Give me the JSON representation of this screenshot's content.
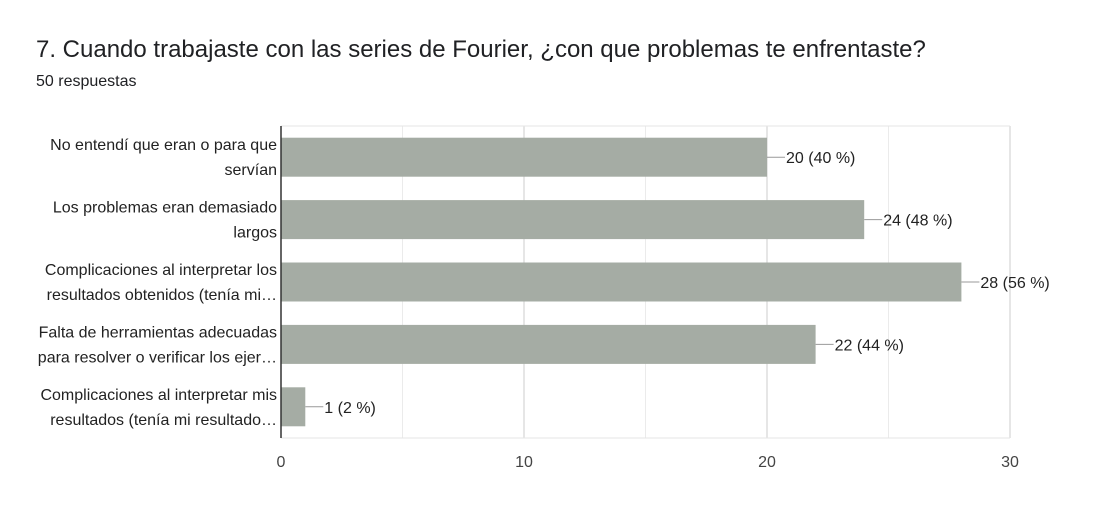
{
  "title": "7. Cuando trabajaste con las series de Fourier, ¿con que problemas te enfrentaste?",
  "subtitle": "50 respuestas",
  "chart_data": {
    "type": "bar",
    "orientation": "horizontal",
    "categories": [
      [
        "No entendí que eran o para que",
        "servían"
      ],
      [
        "Los problemas eran demasiado",
        "largos"
      ],
      [
        "Complicaciones al interpretar los",
        "resultados obtenidos (tenía mi…"
      ],
      [
        "Falta de herramientas adecuadas",
        "para resolver o verificar los ejer…"
      ],
      [
        "Complicaciones al interpretar mis",
        "resultados (tenía mi resultado…"
      ]
    ],
    "values": [
      20,
      24,
      28,
      22,
      1
    ],
    "data_labels": [
      "20 (40 %)",
      "24 (48 %)",
      "28 (56 %)",
      "22 (44 %)",
      "1 (2 %)"
    ],
    "xlim": [
      0,
      30
    ],
    "xticks": [
      0,
      10,
      20,
      30
    ],
    "grid": true,
    "bar_color": "#a5aca4"
  }
}
